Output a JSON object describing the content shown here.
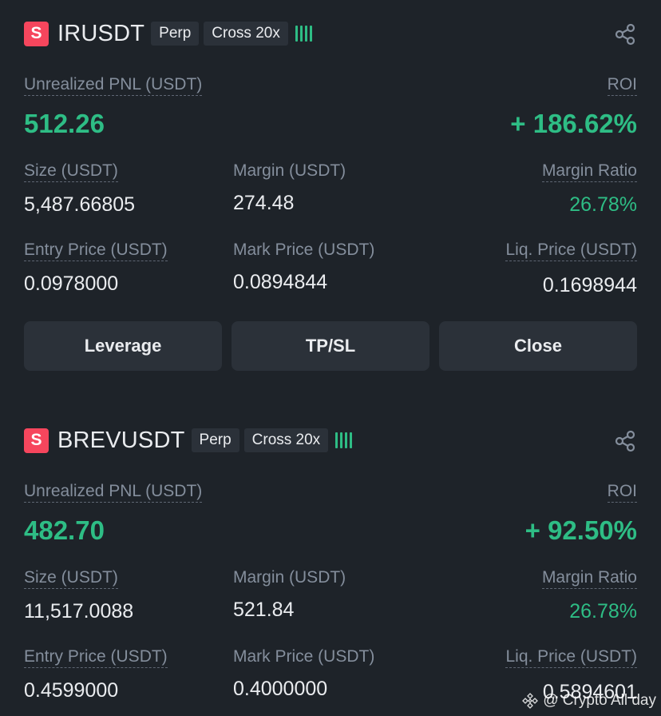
{
  "labels": {
    "pnl": "Unrealized PNL (USDT)",
    "roi": "ROI",
    "size": "Size (USDT)",
    "margin": "Margin (USDT)",
    "margin_ratio": "Margin Ratio",
    "entry_price": "Entry Price (USDT)",
    "mark_price": "Mark Price (USDT)",
    "liq_price": "Liq. Price (USDT)"
  },
  "positions": [
    {
      "badge": "S",
      "symbol": "IRUSDT",
      "type_tag": "Perp",
      "margin_tag": "Cross 20x",
      "pnl": "512.26",
      "roi": "+ 186.62%",
      "size": "5,487.66805",
      "margin": "274.48",
      "margin_ratio": "26.78%",
      "entry_price": "0.0978000",
      "mark_price": "0.0894844",
      "liq_price": "0.1698944",
      "buttons": {
        "leverage": "Leverage",
        "tpsl": "TP/SL",
        "close": "Close"
      }
    },
    {
      "badge": "S",
      "symbol": "BREVUSDT",
      "type_tag": "Perp",
      "margin_tag": "Cross 20x",
      "pnl": "482.70",
      "roi": "+ 92.50%",
      "size": "11,517.0088",
      "margin": "521.84",
      "margin_ratio": "26.78%",
      "entry_price": "0.4599000",
      "mark_price": "0.4000000",
      "liq_price": "0.5894601"
    }
  ],
  "watermark": "@ Crypto All day",
  "colors": {
    "background": "#1e2329",
    "positive": "#2ebd85",
    "short_badge": "#f6465d",
    "button_bg": "#2b3139"
  },
  "icons": {
    "share": "share-icon",
    "signal": "signal-bars-icon",
    "watermark_logo": "binance-logo-icon"
  }
}
